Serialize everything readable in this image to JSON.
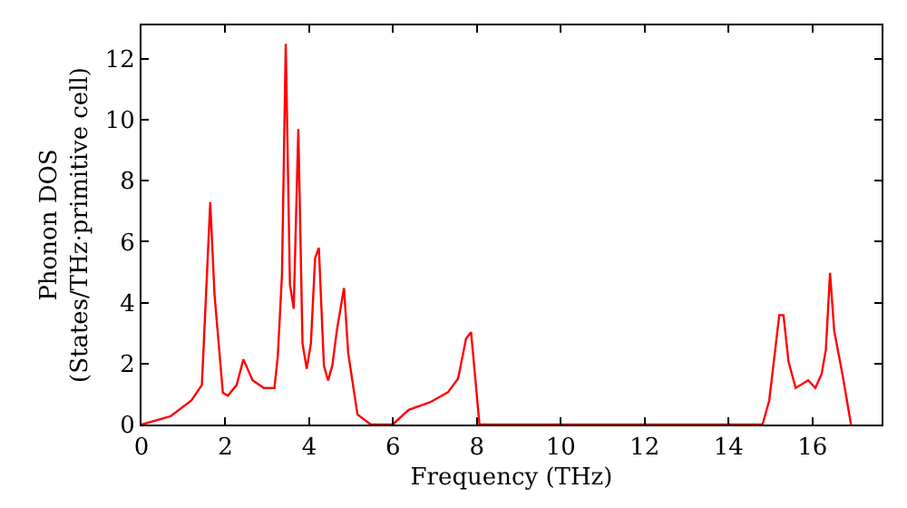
{
  "chart_data": {
    "type": "line",
    "xlabel": "Frequency (THz)",
    "ylabel": "Phonon DOS\n(States/THz·primitive cell)",
    "xlim": [
      0,
      17.65
    ],
    "ylim": [
      0,
      13.1
    ],
    "xticks": [
      0,
      2,
      4,
      6,
      8,
      10,
      12,
      14,
      16
    ],
    "yticks": [
      0,
      2,
      4,
      6,
      8,
      10,
      12
    ],
    "marker": "none",
    "line_style": "solid",
    "series": [
      {
        "color": "#ff0000",
        "x": [
          0,
          0.69,
          1.19,
          1.44,
          1.64,
          1.74,
          1.94,
          2.06,
          2.27,
          2.43,
          2.65,
          2.92,
          3.17,
          3.25,
          3.35,
          3.44,
          3.54,
          3.63,
          3.74,
          3.84,
          3.94,
          4.04,
          4.14,
          4.23,
          4.35,
          4.45,
          4.55,
          4.66,
          4.83,
          4.93,
          5.15,
          5.47,
          5.99,
          6.37,
          6.88,
          7.31,
          7.55,
          7.74,
          7.86,
          8.06,
          14.81,
          14.97,
          15.21,
          15.31,
          15.43,
          15.6,
          15.9,
          16.07,
          16.22,
          16.32,
          16.42,
          16.52,
          16.72,
          16.92
        ],
        "values": [
          0,
          0.27,
          0.79,
          1.3,
          7.3,
          4.3,
          1.04,
          0.95,
          1.3,
          2.14,
          1.45,
          1.2,
          1.2,
          2.24,
          4.9,
          12.5,
          4.6,
          3.8,
          9.7,
          2.66,
          1.83,
          2.66,
          5.46,
          5.8,
          1.93,
          1.45,
          1.93,
          3.1,
          4.48,
          2.34,
          0.33,
          0,
          0,
          0.48,
          0.73,
          1.06,
          1.51,
          2.82,
          3.03,
          0,
          0,
          0.79,
          3.59,
          3.59,
          2.07,
          1.2,
          1.45,
          1.2,
          1.66,
          2.45,
          4.98,
          3.07,
          1.62,
          0
        ]
      }
    ]
  }
}
